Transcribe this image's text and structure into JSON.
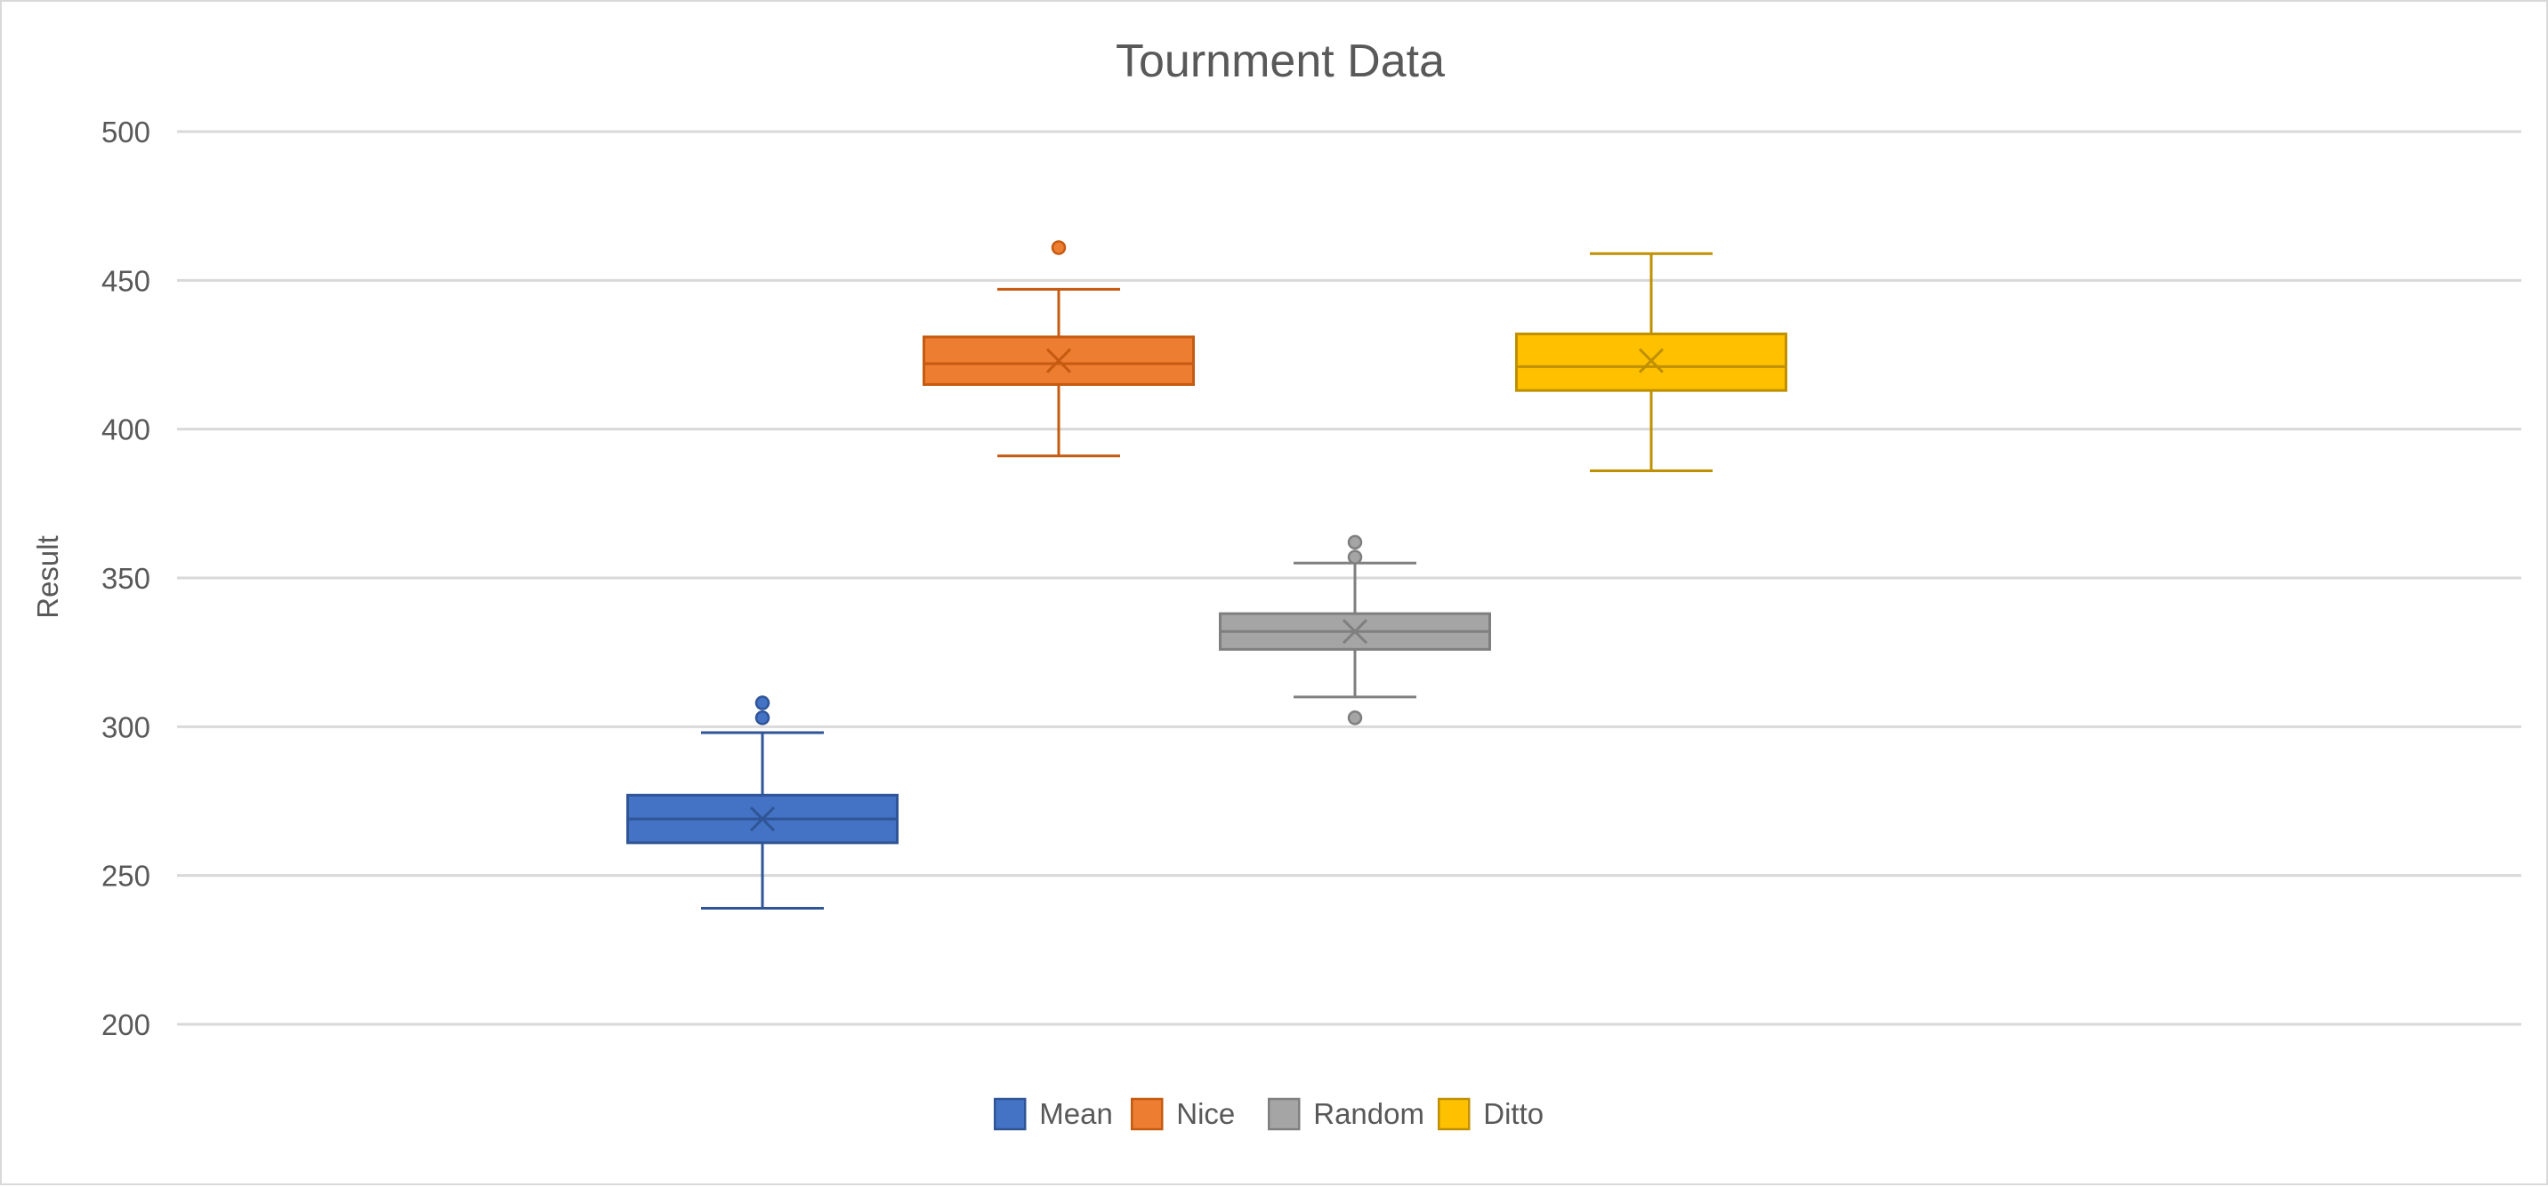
{
  "chart_data": {
    "type": "box",
    "title": "Tournment Data",
    "xlabel": "",
    "ylabel": "Result",
    "ylim": [
      200,
      500
    ],
    "yticks": [
      200,
      250,
      300,
      350,
      400,
      450,
      500
    ],
    "grid": true,
    "legend_position": "bottom",
    "series": [
      {
        "name": "Mean",
        "color": "#4472c4",
        "edge": "#2f5597",
        "min": 239,
        "q1": 261,
        "median": 269,
        "q3": 277,
        "max": 298,
        "mean": 269,
        "outliers": [
          303,
          308
        ]
      },
      {
        "name": "Nice",
        "color": "#ed7d31",
        "edge": "#c55a11",
        "min": 391,
        "q1": 415,
        "median": 422,
        "q3": 431,
        "max": 447,
        "mean": 423,
        "outliers": [
          461
        ]
      },
      {
        "name": "Random",
        "color": "#a5a5a5",
        "edge": "#7f7f7f",
        "min": 310,
        "q1": 326,
        "median": 332,
        "q3": 338,
        "max": 355,
        "mean": 332,
        "outliers": [
          303,
          357,
          362
        ]
      },
      {
        "name": "Ditto",
        "color": "#ffc000",
        "edge": "#bf9000",
        "min": 386,
        "q1": 413,
        "median": 421,
        "q3": 432,
        "max": 459,
        "mean": 423,
        "outliers": []
      }
    ]
  }
}
